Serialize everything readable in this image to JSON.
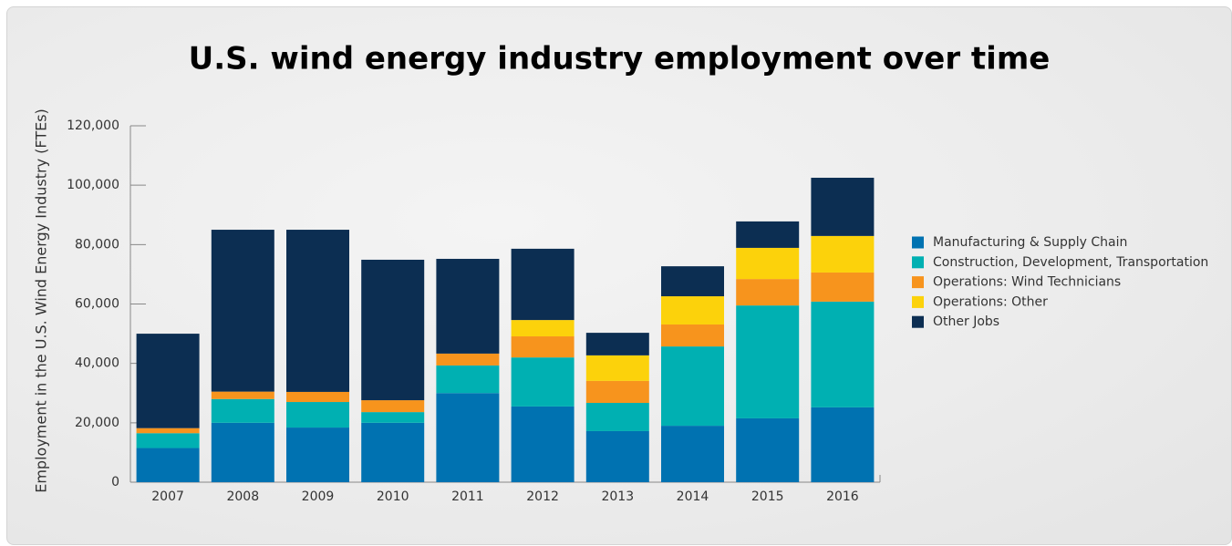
{
  "chart_data": {
    "type": "stacked-bar",
    "title": "U.S. wind energy industry employment over time",
    "y_label": "Employment in the U.S. Wind Energy Industry (FTEs)",
    "categories": [
      "2007",
      "2008",
      "2009",
      "2010",
      "2011",
      "2012",
      "2013",
      "2014",
      "2015",
      "2016"
    ],
    "series": [
      {
        "name": "Manufacturing & Supply Chain",
        "color": "#0072b1",
        "values": [
          11500,
          20000,
          18400,
          20000,
          30000,
          25500,
          17200,
          19000,
          21500,
          25200
        ]
      },
      {
        "name": "Construction, Development, Transportation",
        "color": "#00b0b2",
        "values": [
          5000,
          8000,
          8600,
          3600,
          9300,
          16500,
          9500,
          26700,
          38000,
          35600
        ]
      },
      {
        "name": "Operations: Wind Technicians",
        "color": "#f7941d",
        "values": [
          1700,
          2500,
          3400,
          4000,
          4000,
          7100,
          7400,
          7400,
          8900,
          9800
        ]
      },
      {
        "name": "Operations: Other",
        "color": "#fcd20b",
        "values": [
          0,
          0,
          0,
          0,
          0,
          5500,
          8600,
          9500,
          10500,
          12300
        ]
      },
      {
        "name": "Other Jobs",
        "color": "#0c2e52",
        "values": [
          31800,
          54500,
          54600,
          47300,
          31900,
          24000,
          7600,
          10100,
          8900,
          19600
        ]
      }
    ],
    "ylim": [
      0,
      120000
    ],
    "yticks": [
      0,
      {
        "value": 20000,
        "label": "20,000"
      },
      {
        "value": 40000,
        "label": "40,000"
      },
      {
        "value": 60000,
        "label": "60,000"
      },
      {
        "value": 80000,
        "label": "80,000"
      },
      {
        "value": 100000,
        "label": "100,000"
      },
      {
        "value": 120000,
        "label": "120,000"
      }
    ],
    "legend": "right"
  }
}
